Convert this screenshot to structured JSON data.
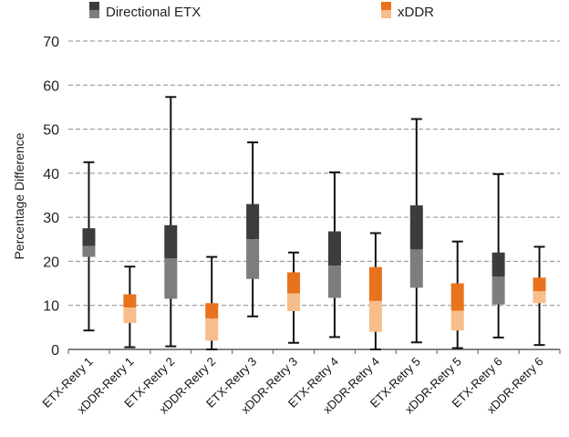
{
  "chart_data": {
    "type": "boxplot",
    "title": "",
    "xlabel": "",
    "ylabel": "Percentage Difference",
    "ylim": [
      0,
      70
    ],
    "yticks": [
      0,
      10,
      20,
      30,
      40,
      50,
      60,
      70
    ],
    "grid": "horizontal dashed",
    "legend_position": "top",
    "series": [
      {
        "name": "Directional ETX",
        "color_dark": "#3c3c3c",
        "color_light": "#7d7d7d"
      },
      {
        "name": "xDDR",
        "color_dark": "#e8731c",
        "color_light": "#f7bd8b"
      }
    ],
    "boxes": [
      {
        "label": "ETX-Retry 1",
        "series": 0,
        "min": 4.3,
        "q1": 21.0,
        "median": 23.5,
        "q3": 27.5,
        "max": 42.5
      },
      {
        "label": "xDDR-Retry 1",
        "series": 1,
        "min": 0.5,
        "q1": 6.0,
        "median": 9.5,
        "q3": 12.5,
        "max": 18.8
      },
      {
        "label": "ETX-Retry 2",
        "series": 0,
        "min": 0.7,
        "q1": 11.5,
        "median": 20.7,
        "q3": 28.2,
        "max": 57.3
      },
      {
        "label": "xDDR-Retry 2",
        "series": 1,
        "min": 0.0,
        "q1": 2.0,
        "median": 7.0,
        "q3": 10.5,
        "max": 21.0
      },
      {
        "label": "ETX-Retry 3",
        "series": 0,
        "min": 7.5,
        "q1": 16.0,
        "median": 25.0,
        "q3": 33.0,
        "max": 47.0
      },
      {
        "label": "xDDR-Retry 3",
        "series": 1,
        "min": 1.5,
        "q1": 8.7,
        "median": 12.7,
        "q3": 17.5,
        "max": 22.0
      },
      {
        "label": "ETX-Retry 4",
        "series": 0,
        "min": 2.8,
        "q1": 11.7,
        "median": 19.0,
        "q3": 26.8,
        "max": 40.2
      },
      {
        "label": "xDDR-Retry 4",
        "series": 1,
        "min": 0.0,
        "q1": 4.0,
        "median": 11.0,
        "q3": 18.7,
        "max": 26.4
      },
      {
        "label": "ETX-Retry 5",
        "series": 0,
        "min": 1.6,
        "q1": 14.0,
        "median": 22.7,
        "q3": 32.7,
        "max": 52.3
      },
      {
        "label": "xDDR-Retry 5",
        "series": 1,
        "min": 0.3,
        "q1": 4.3,
        "median": 8.8,
        "q3": 15.0,
        "max": 24.5
      },
      {
        "label": "ETX-Retry 6",
        "series": 0,
        "min": 2.7,
        "q1": 10.2,
        "median": 16.5,
        "q3": 22.0,
        "max": 39.8
      },
      {
        "label": "xDDR-Retry 6",
        "series": 1,
        "min": 1.0,
        "q1": 10.5,
        "median": 13.2,
        "q3": 16.3,
        "max": 23.3
      }
    ]
  }
}
